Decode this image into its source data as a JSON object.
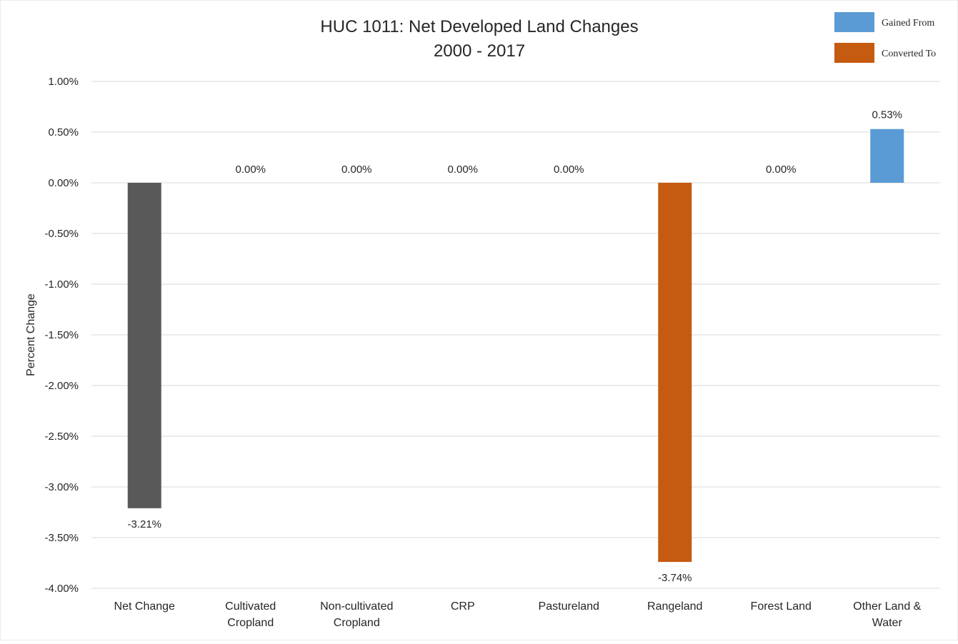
{
  "chart_data": {
    "type": "bar",
    "title": "HUC 1011: Net Developed Land Changes",
    "subtitle": "2000 - 2017",
    "xlabel": "",
    "ylabel": "Percent Change",
    "ylim": [
      -4.0,
      1.0
    ],
    "y_ticks": [
      "1.00%",
      "0.50%",
      "0.00%",
      "-0.50%",
      "-1.00%",
      "-1.50%",
      "-2.00%",
      "-2.50%",
      "-3.00%",
      "-3.50%",
      "-4.00%"
    ],
    "y_tick_values": [
      1.0,
      0.5,
      0.0,
      -0.5,
      -1.0,
      -1.5,
      -2.0,
      -2.5,
      -3.0,
      -3.5,
      -4.0
    ],
    "grid": true,
    "legend_position": "top-right",
    "legend": [
      {
        "label": "Gained From",
        "color": "#5b9bd5"
      },
      {
        "label": "Converted To",
        "color": "#c55a11"
      }
    ],
    "categories": [
      [
        "Net Change"
      ],
      [
        "Cultivated",
        "Cropland"
      ],
      [
        "Non-cultivated",
        "Cropland"
      ],
      [
        "CRP"
      ],
      [
        "Pastureland"
      ],
      [
        "Rangeland"
      ],
      [
        "Forest Land"
      ],
      [
        "Other Land &",
        "Water"
      ]
    ],
    "values": [
      -3.21,
      0.0,
      0.0,
      0.0,
      0.0,
      -3.74,
      0.0,
      0.53
    ],
    "data_labels": [
      "-3.21%",
      "0.00%",
      "0.00%",
      "0.00%",
      "0.00%",
      "-3.74%",
      "0.00%",
      "0.53%"
    ],
    "bar_colors": [
      "#595959",
      "#595959",
      "#595959",
      "#595959",
      "#595959",
      "#c55a11",
      "#595959",
      "#5b9bd5"
    ]
  }
}
